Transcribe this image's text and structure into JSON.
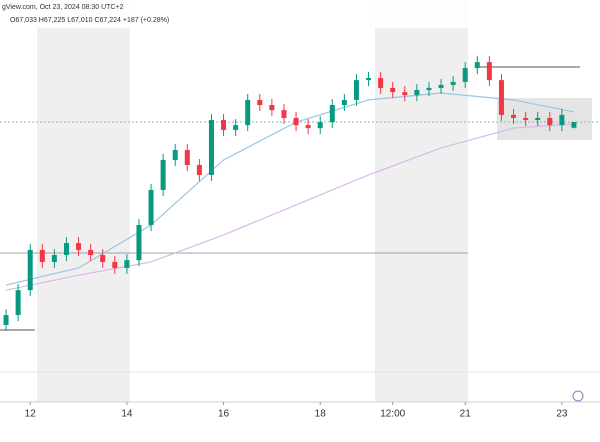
{
  "chart_data": {
    "type": "candlestick",
    "source": "gView.com, Oct 23, 2024 08:30 UTC+2",
    "ohlc_text": "O67,033 H67,225 L67,010 C67,224 +187 (+0.28%)",
    "up_color": "#089981",
    "down_color": "#f23645",
    "ylim": [
      57960,
      71290
    ],
    "xlim": [
      0,
      48
    ],
    "xticks": [
      {
        "value": 2,
        "label": "12"
      },
      {
        "value": 10,
        "label": "14"
      },
      {
        "value": 18,
        "label": "16"
      },
      {
        "value": 26,
        "label": "18"
      },
      {
        "value": 32,
        "label": "12:00"
      },
      {
        "value": 38,
        "label": "21"
      },
      {
        "value": 46,
        "label": "23"
      }
    ],
    "open": [
      60460,
      60790,
      61620,
      62960,
      62560,
      62790,
      63190,
      62960,
      62790,
      62560,
      62360,
      62620,
      63790,
      64960,
      65960,
      66290,
      65790,
      65460,
      67290,
      66960,
      67120,
      67960,
      67790,
      67620,
      67360,
      67120,
      67020,
      67220,
      67790,
      67960,
      68620,
      68690,
      68360,
      68220,
      68120,
      68290,
      68360,
      68460,
      68560,
      69020,
      69220,
      68620,
      67460,
      67360,
      67290,
      67360,
      67120,
      67033
    ],
    "high": [
      60990,
      61820,
      63160,
      63160,
      62990,
      63390,
      63390,
      63160,
      62990,
      62760,
      62820,
      63990,
      65160,
      66160,
      66490,
      66490,
      65990,
      67490,
      67490,
      67320,
      68160,
      68160,
      67990,
      67820,
      67560,
      67320,
      67420,
      67990,
      68160,
      68820,
      68890,
      68890,
      68560,
      68420,
      68490,
      68560,
      68660,
      68760,
      69220,
      69420,
      69420,
      68820,
      67660,
      67560,
      67560,
      67560,
      67660,
      67225
    ],
    "low": [
      60260,
      60590,
      61420,
      62360,
      62360,
      62590,
      62760,
      62590,
      62360,
      62160,
      62160,
      62420,
      63590,
      64760,
      65760,
      65590,
      65260,
      65260,
      66760,
      66760,
      66920,
      67590,
      67420,
      67160,
      66920,
      66820,
      66820,
      67020,
      67590,
      67760,
      68420,
      68160,
      68020,
      67920,
      67920,
      68090,
      68160,
      68260,
      68360,
      68820,
      68420,
      67260,
      67160,
      67090,
      67090,
      66920,
      66920,
      67010
    ],
    "close": [
      60790,
      61620,
      62960,
      62560,
      62790,
      63190,
      62960,
      62790,
      62560,
      62360,
      62620,
      63790,
      64960,
      65960,
      66290,
      65790,
      65460,
      67290,
      66960,
      67120,
      67960,
      67790,
      67620,
      67360,
      67120,
      67020,
      67220,
      67790,
      67960,
      68620,
      68690,
      68360,
      68220,
      68120,
      68290,
      68360,
      68460,
      68560,
      69020,
      69220,
      68620,
      67460,
      67360,
      67290,
      67360,
      67120,
      67460,
      67224
    ],
    "ma_x": [
      0,
      6,
      12,
      18,
      24,
      30,
      36,
      42,
      47
    ],
    "series": [
      {
        "color": "#9cc3e0",
        "values": [
          61790,
          62360,
          63790,
          65960,
          67220,
          67960,
          68190,
          67960,
          67560
        ]
      },
      {
        "color": "#dcb8e8",
        "values": [
          61620,
          62120,
          62560,
          63460,
          64460,
          65460,
          66360,
          67020,
          67160
        ]
      }
    ]
  }
}
